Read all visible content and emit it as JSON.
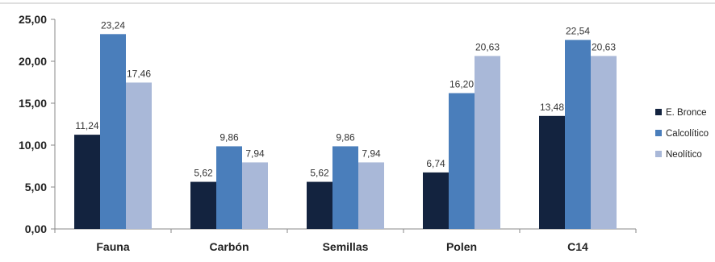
{
  "chart_data": {
    "type": "bar",
    "title": "",
    "xlabel": "",
    "ylabel": "",
    "categories": [
      "Fauna",
      "Carbón",
      "Semillas",
      "Polen",
      "C14"
    ],
    "series": [
      {
        "name": "E. Bronce",
        "color": "#13233f",
        "values": [
          11.24,
          5.62,
          5.62,
          6.74,
          13.48
        ],
        "labels": [
          "11,24",
          "5,62",
          "5,62",
          "6,74",
          "13,48"
        ]
      },
      {
        "name": "Calcolítico",
        "color": "#4a7ebb",
        "values": [
          23.24,
          9.86,
          9.86,
          16.2,
          22.54
        ],
        "labels": [
          "23,24",
          "9,86",
          "9,86",
          "16,20",
          "22,54"
        ]
      },
      {
        "name": "Neolítico",
        "color": "#a9b8d8",
        "values": [
          17.46,
          7.94,
          7.94,
          20.63,
          20.63
        ],
        "labels": [
          "17,46",
          "7,94",
          "7,94",
          "20,63",
          "20,63"
        ]
      }
    ],
    "ylim": [
      0,
      25
    ],
    "yticks": [
      "0,00",
      "5,00",
      "10,00",
      "15,00",
      "20,00",
      "25,00"
    ],
    "grid": false,
    "legend": "right"
  }
}
